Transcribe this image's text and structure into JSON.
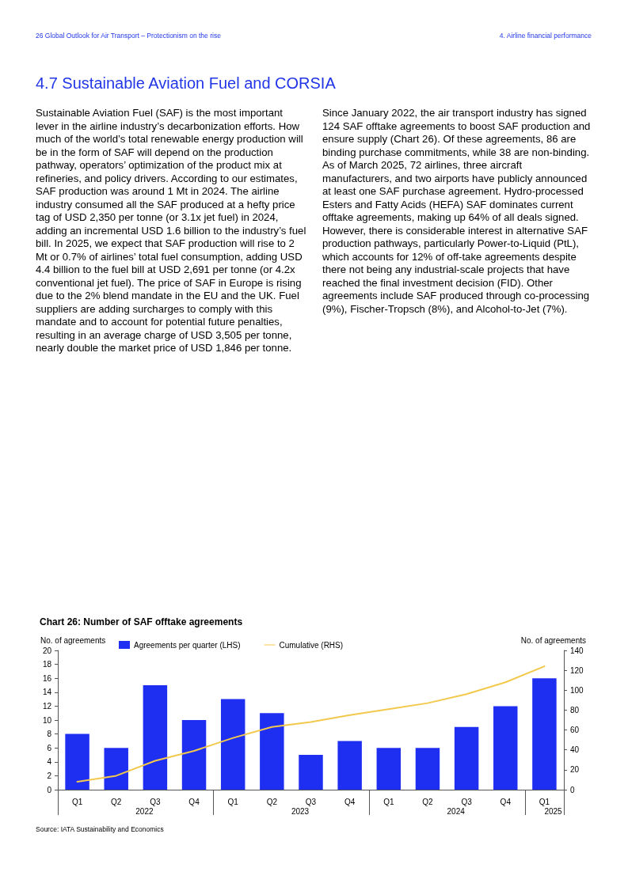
{
  "chart_data": {
    "type": "bar",
    "title": "Chart 26: Number of SAF offtake agreements",
    "annotations": [
      "2022",
      "2023",
      "2024",
      "2025",
      "26   Global Outlook for Air Transport – Protectionism on the rise",
      "4.  Airline financial performance",
      "4.7  Sustainable Aviation Fuel and CORSIA",
      "Sustainable Aviation Fuel (SAF) is the most important lever in the airline industry’s decarbonization efforts. How much of the world’s total renewable energy production will be in the form of SAF will depend on the production pathway, operators’ optimization of the product mix at refineries, and policy drivers. According to our estimates, SAF production was around 1 Mt in 2024. The airline industry consumed all the SAF produced at a hefty price tag of USD 2,350 per tonne (or 3.1x jet fuel) in 2024, adding an incremental USD 1.6 billion to the industry’s fuel bill. In 2025, we expect that SAF production will rise to 2 Mt or 0.7% of airlines’ total fuel consumption, adding USD 4.4 billion to the fuel bill at USD 2,691 per tonne (or 4.2x conventional jet fuel). The price of SAF in Europe is rising due to the 2% blend mandate in the EU and the UK. Fuel suppliers are adding surcharges to comply with this mandate and to account for potential future penalties, resulting in an average charge of USD 3,505 per tonne, nearly double the market price of USD 1,846 per tonne.",
      "Since January 2022, the air transport industry has signed 124 SAF offtake agreements to boost SAF production and ensure supply (Chart 26). Of these agreements, 86 are binding purchase commitments, while 38 are non-binding. As of March 2025, 72 airlines, three aircraft manufacturers, and two airports have publicly announced at least one SAF purchase agreement. Hydro-processed Esters and Fatty Acids (HEFA) SAF dominates current offtake agreements, making up 64% of all deals signed. However, there is considerable interest in alternative SAF production pathways, particularly Power-to-Liquid (PtL), which accounts for 12% of off-take agreements despite there not being any industrial-scale projects that have reached the final investment decision (FID). Other agreements include SAF produced through co-processing (9%), Fischer-Tropsch (8%), and Alcohol-to-Jet (7%).",
      "Source: IATA Sustainability and Economics"
    ],
    "ylabel": "No. of agreements",
    "y2label": "No. of agreements",
    "categories": [
      "Q1",
      "Q2",
      "Q3",
      "Q4",
      "Q1",
      "Q2",
      "Q3",
      "Q4",
      "Q1",
      "Q2",
      "Q3",
      "Q4",
      "Q1"
    ],
    "series": [
      {
        "name": "Agreements per quarter (LHS)",
        "color": "#1f2ff2",
        "values": [
          8,
          6,
          15,
          10,
          13,
          11,
          5,
          7,
          6,
          6,
          9,
          12,
          16
        ]
      },
      {
        "name": "Cumulative (RHS)",
        "type": "line",
        "axis": "y2",
        "color": "#f2c94c",
        "values": [
          8,
          14,
          29,
          39,
          52,
          63,
          68,
          75,
          81,
          87,
          96,
          108,
          124
        ]
      }
    ],
    "ylim": [
      0,
      20
    ],
    "yticks": [
      0,
      2,
      4,
      6,
      8,
      10,
      12,
      14,
      16,
      18,
      20
    ],
    "y2lim": [
      0,
      140
    ],
    "y2ticks": [
      0,
      20,
      40,
      60,
      80,
      100,
      120,
      140
    ],
    "legend": "top left",
    "grid": false,
    "marker": "none",
    "line_style": "solid"
  }
}
